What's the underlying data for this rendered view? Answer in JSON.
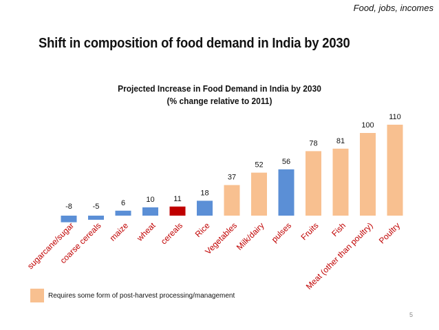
{
  "header": {
    "tagline": "Food, jobs, incomes",
    "title": "Shift in composition of food demand in India by 2030"
  },
  "chart_data": {
    "type": "bar",
    "title": "Projected Increase in Food Demand in India by 2030",
    "subtitle": "(% change relative to 2011)",
    "categories": [
      "sugarcane/sugar",
      "coarse cereals",
      "maize",
      "wheat",
      "cereals",
      "Rice",
      "Vegetables",
      "Milk/dairy",
      "pulses",
      "Fruits",
      "Fish",
      "Meat (other than poultry)",
      "Poultry"
    ],
    "values": [
      -8,
      -5,
      6,
      10,
      11,
      18,
      37,
      52,
      56,
      78,
      81,
      100,
      110
    ],
    "bar_colors": [
      "#5b8fd6",
      "#5b8fd6",
      "#5b8fd6",
      "#5b8fd6",
      "#c00000",
      "#5b8fd6",
      "#f8c090",
      "#f8c090",
      "#5b8fd6",
      "#f8c090",
      "#f8c090",
      "#f8c090",
      "#f8c090"
    ],
    "ylim": [
      -10,
      115
    ],
    "grid": false,
    "legend_position": "bottom-left"
  },
  "legend": {
    "label": "Requires some form of post-harvest processing/management",
    "color": "#f8c090"
  },
  "footer": {
    "page_number": "5"
  }
}
